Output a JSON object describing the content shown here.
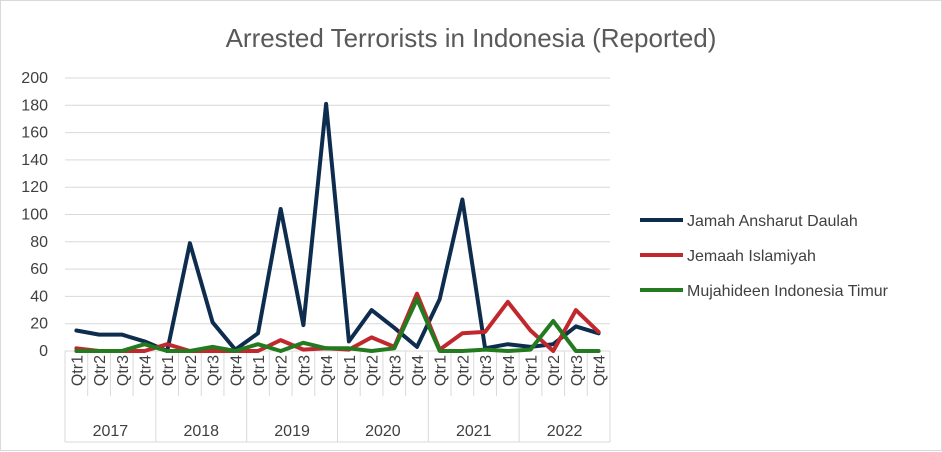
{
  "chart_data": {
    "type": "line",
    "title": "Arrested Terrorists in Indonesia (Reported)",
    "xlabel": "",
    "ylabel": "",
    "ylim": [
      0,
      200
    ],
    "yticks": [
      0,
      20,
      40,
      60,
      80,
      100,
      120,
      140,
      160,
      180,
      200
    ],
    "years": [
      "2017",
      "2018",
      "2019",
      "2020",
      "2021",
      "2022"
    ],
    "quarters": [
      "Qtr1",
      "Qtr2",
      "Qtr3",
      "Qtr4"
    ],
    "grid": true,
    "legend_position": "right",
    "series": [
      {
        "name": "Jamah Ansharut Daulah",
        "color": "#0e2d4e",
        "values": [
          15,
          12,
          12,
          7,
          0,
          79,
          21,
          1,
          13,
          104,
          19,
          181,
          7,
          30,
          17,
          3,
          38,
          111,
          2,
          5,
          3,
          5,
          18,
          13
        ]
      },
      {
        "name": "Jemaah Islamiyah",
        "color": "#c0282d",
        "values": [
          2,
          0,
          0,
          0,
          5,
          0,
          0,
          0,
          0,
          8,
          1,
          2,
          1,
          10,
          3,
          42,
          1,
          13,
          14,
          36,
          15,
          0,
          30,
          14
        ]
      },
      {
        "name": "Mujahideen Indonesia Timur",
        "color": "#237a1f",
        "values": [
          0,
          0,
          0,
          5,
          0,
          0,
          3,
          0,
          5,
          0,
          6,
          2,
          2,
          0,
          2,
          38,
          0,
          0,
          1,
          0,
          1,
          22,
          0,
          0
        ]
      }
    ]
  }
}
